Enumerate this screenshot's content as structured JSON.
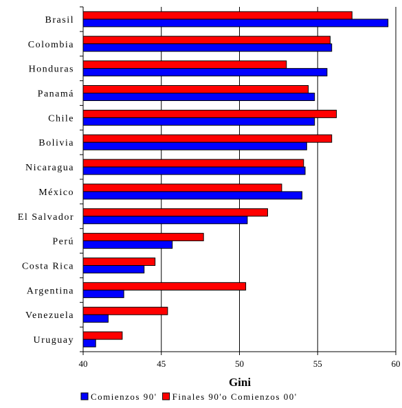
{
  "chart_data": {
    "type": "bar",
    "orientation": "horizontal",
    "categories": [
      "Brasil",
      "Colombia",
      "Honduras",
      "Panamá",
      "Chile",
      "Bolivia",
      "Nicaragua",
      "México",
      "El Salvador",
      "Perú",
      "Costa Rica",
      "Argentina",
      "Venezuela",
      "Uruguay"
    ],
    "series": [
      {
        "name": "Comienzos 90'",
        "color": "#0000ff",
        "values": [
          59.5,
          55.9,
          55.6,
          54.8,
          54.8,
          54.3,
          54.2,
          54.0,
          50.5,
          45.7,
          43.9,
          42.6,
          41.6,
          40.8
        ]
      },
      {
        "name": "Finales 90'o Comienzos 00'",
        "color": "#ff0000",
        "values": [
          57.2,
          55.8,
          53.0,
          54.4,
          56.2,
          55.9,
          54.1,
          52.7,
          51.8,
          47.7,
          44.6,
          50.4,
          45.4,
          42.5
        ]
      }
    ],
    "xlabel": "Gini",
    "ylabel": "",
    "xlim": [
      40,
      60
    ],
    "xticks": [
      40,
      45,
      50,
      55,
      60
    ],
    "grid": "vertical",
    "legend_position": "bottom"
  }
}
